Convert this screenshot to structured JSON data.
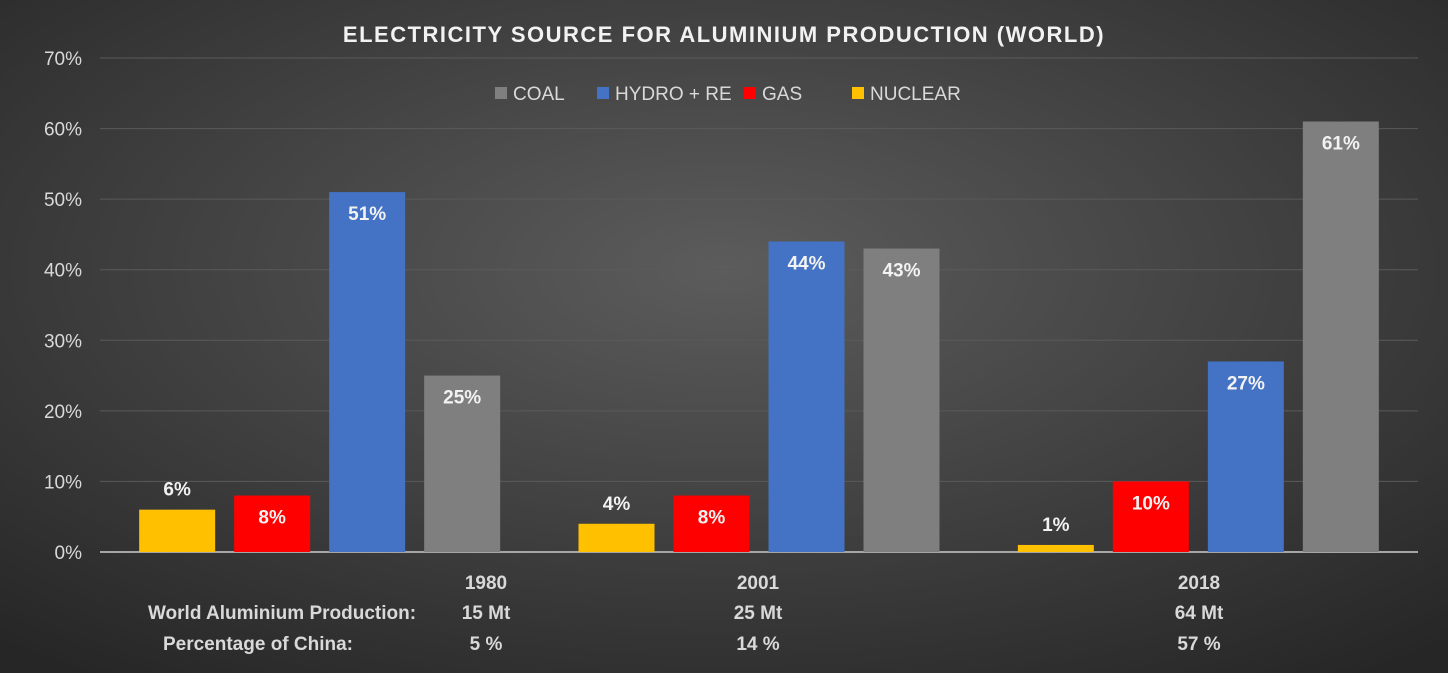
{
  "chart_data": {
    "type": "bar",
    "title": "ELECTRICITY SOURCE FOR ALUMINIUM PRODUCTION (WORLD)",
    "categories": [
      "1980",
      "2001",
      "2018"
    ],
    "ylim": [
      0,
      70
    ],
    "yticks": [
      "0%",
      "10%",
      "20%",
      "30%",
      "40%",
      "50%",
      "60%",
      "70%"
    ],
    "grid": true,
    "legend_position": "top",
    "legend": [
      "COAL",
      "HYDRO + RE",
      "GAS",
      "NUCLEAR"
    ],
    "series": [
      {
        "name": "NUCLEAR",
        "color": "#ffc000",
        "values": [
          6,
          4,
          1
        ],
        "labels": [
          "6%",
          "4%",
          "1%"
        ]
      },
      {
        "name": "GAS",
        "color": "#ff0000",
        "values": [
          8,
          8,
          10
        ],
        "labels": [
          "8%",
          "8%",
          "10%"
        ]
      },
      {
        "name": "HYDRO + RE",
        "color": "#4472c4",
        "values": [
          51,
          44,
          27
        ],
        "labels": [
          "51%",
          "44%",
          "27%"
        ]
      },
      {
        "name": "COAL",
        "color": "#7f7f7f",
        "values": [
          25,
          43,
          61
        ],
        "labels": [
          "25%",
          "43%",
          "61%"
        ]
      }
    ],
    "table": {
      "row_labels": [
        "World Aluminium Production:",
        "Percentage of China:"
      ],
      "production": [
        "15 Mt",
        "25 Mt",
        "64 Mt"
      ],
      "china_share": [
        "5 %",
        "14 %",
        "57 %"
      ]
    }
  }
}
